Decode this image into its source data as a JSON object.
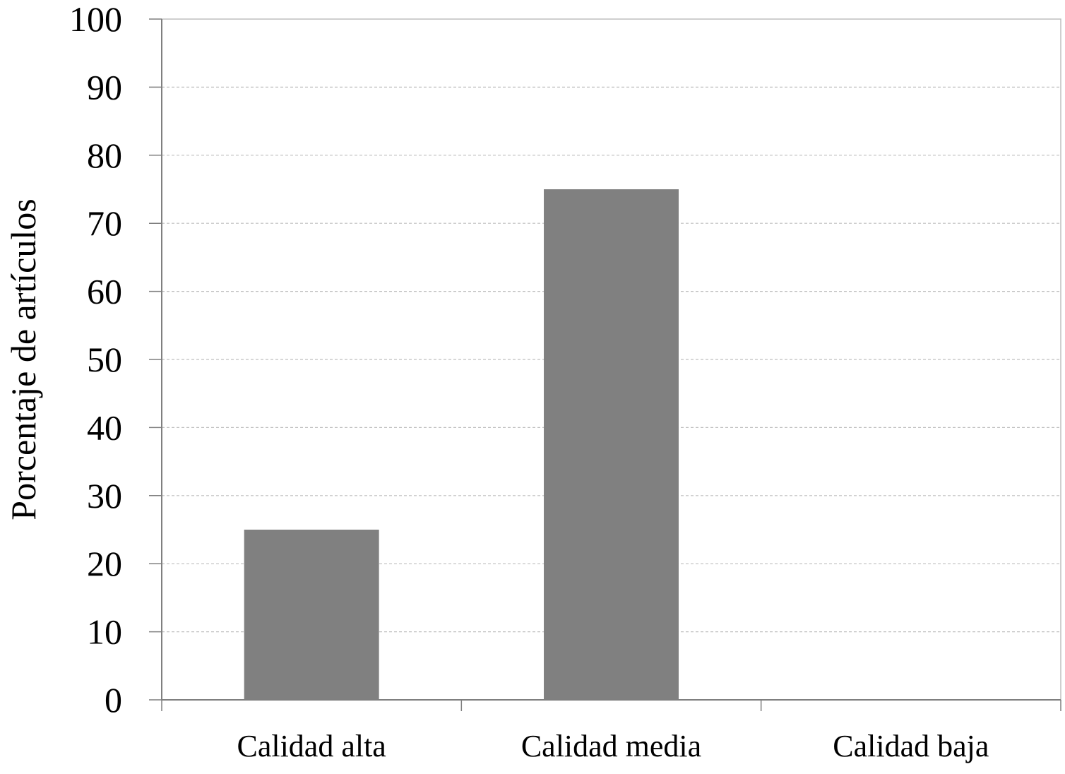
{
  "chart_data": {
    "type": "bar",
    "categories": [
      "Calidad alta",
      "Calidad media",
      "Calidad baja"
    ],
    "values": [
      25,
      75,
      0
    ],
    "title": "",
    "xlabel": "",
    "ylabel": "Porcentaje de artículos",
    "ylim": [
      0,
      100
    ],
    "y_ticks": [
      0,
      10,
      20,
      30,
      40,
      50,
      60,
      70,
      80,
      90,
      100
    ],
    "grid": true,
    "grid_style": "dashed horizontal",
    "bar_color": "#808080",
    "legend": "none"
  }
}
